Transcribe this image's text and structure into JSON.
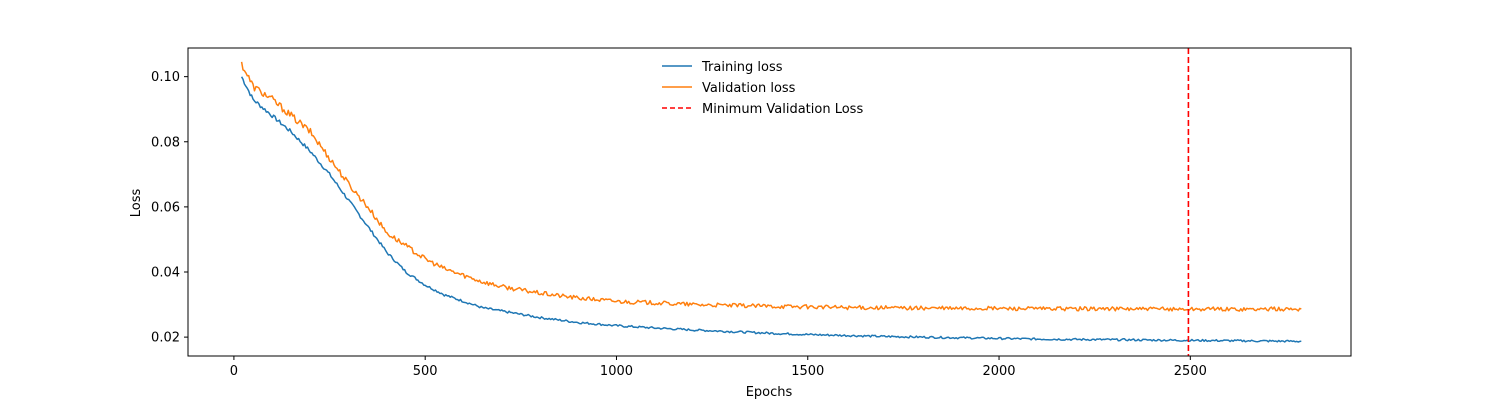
{
  "chart_data": {
    "type": "line",
    "title": "",
    "xlabel": "Epochs",
    "ylabel": "Loss",
    "xlim": [
      -120,
      2920
    ],
    "ylim": [
      0.0142,
      0.1088
    ],
    "x_ticks": [
      0,
      500,
      1000,
      1500,
      2000,
      2500
    ],
    "x_tick_labels": [
      "0",
      "500",
      "1000",
      "1500",
      "2000",
      "2500"
    ],
    "y_ticks": [
      0.02,
      0.04,
      0.06,
      0.08,
      0.1
    ],
    "y_tick_labels": [
      "0.02",
      "0.04",
      "0.06",
      "0.08",
      "0.10"
    ],
    "grid": false,
    "legend_position": "top-center",
    "series": [
      {
        "name": "Training loss",
        "color": "#1f77b4",
        "style": "solid",
        "x": [
          20,
          50,
          100,
          150,
          200,
          250,
          300,
          350,
          400,
          450,
          500,
          550,
          600,
          650,
          700,
          750,
          800,
          900,
          1000,
          1100,
          1200,
          1300,
          1400,
          1500,
          1600,
          1700,
          1800,
          1900,
          2000,
          2100,
          2200,
          2300,
          2400,
          2500,
          2600,
          2700,
          2790
        ],
        "y": [
          0.1,
          0.093,
          0.088,
          0.083,
          0.077,
          0.07,
          0.062,
          0.054,
          0.046,
          0.04,
          0.036,
          0.033,
          0.031,
          0.029,
          0.028,
          0.027,
          0.026,
          0.0245,
          0.0235,
          0.0228,
          0.0222,
          0.0217,
          0.0212,
          0.0208,
          0.0205,
          0.0202,
          0.02,
          0.0198,
          0.0196,
          0.0194,
          0.0193,
          0.0192,
          0.0191,
          0.019,
          0.0189,
          0.0188,
          0.0187
        ]
      },
      {
        "name": "Validation loss",
        "color": "#ff7f0e",
        "style": "solid",
        "x": [
          20,
          50,
          100,
          150,
          200,
          250,
          300,
          350,
          400,
          450,
          500,
          550,
          600,
          650,
          700,
          750,
          800,
          900,
          1000,
          1100,
          1200,
          1300,
          1400,
          1500,
          1600,
          1700,
          1800,
          1900,
          2000,
          2100,
          2200,
          2300,
          2400,
          2500,
          2600,
          2700,
          2790
        ],
        "y": [
          0.104,
          0.097,
          0.093,
          0.088,
          0.083,
          0.075,
          0.067,
          0.06,
          0.052,
          0.048,
          0.044,
          0.041,
          0.039,
          0.037,
          0.0355,
          0.0345,
          0.0335,
          0.032,
          0.031,
          0.0305,
          0.03,
          0.0297,
          0.0295,
          0.0293,
          0.0291,
          0.029,
          0.0289,
          0.0288,
          0.0288,
          0.0287,
          0.0287,
          0.0287,
          0.0286,
          0.0286,
          0.0286,
          0.0286,
          0.0286
        ]
      }
    ],
    "vlines": [
      {
        "name": "Minimum Validation Loss",
        "x": 2495,
        "color": "#ff0000",
        "style": "dashed"
      }
    ]
  }
}
